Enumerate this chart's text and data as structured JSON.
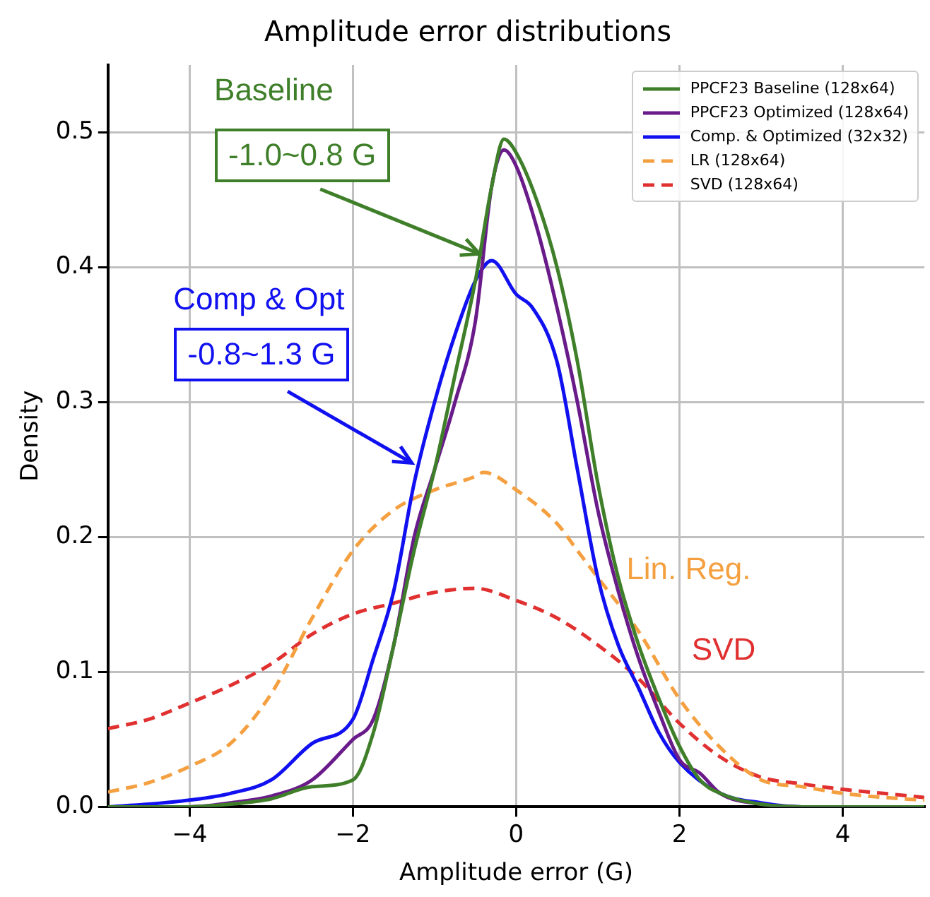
{
  "chart_data": {
    "type": "line",
    "title": "Amplitude error distributions",
    "xlabel": "Amplitude error (G)",
    "ylabel": "Density",
    "xlim": [
      -5,
      5
    ],
    "ylim": [
      0,
      0.55
    ],
    "xticks": [
      {
        "value": -4,
        "label": "−4"
      },
      {
        "value": -2,
        "label": "−2"
      },
      0,
      2,
      4
    ],
    "yticks": [
      {
        "value": 0,
        "label": "0.0"
      },
      {
        "value": 0.1,
        "label": "0.1"
      },
      {
        "value": 0.2,
        "label": "0.2"
      },
      {
        "value": 0.3,
        "label": "0.3"
      },
      {
        "value": 0.4,
        "label": "0.4"
      },
      {
        "value": 0.5,
        "label": "0.5"
      }
    ],
    "grid": true,
    "legend": "top right",
    "marker": "none",
    "annotations": [
      "Baseline",
      {
        "text": "-1.0~0.8 G",
        "x": -0.45,
        "y": 0.41
      },
      "Comp & Opt",
      {
        "text": "-0.8~1.3 G",
        "x": -1.28,
        "y": 0.255
      },
      "Lin. Reg.",
      "SVD"
    ],
    "series": [
      {
        "name": "PPCF23 Baseline (128x64)",
        "color": "#3f7f2a",
        "line_style": "solid",
        "x": [
          -5,
          -4,
          -3.5,
          -3,
          -2.5,
          -2,
          -1.75,
          -1.5,
          -1.25,
          -1,
          -0.75,
          -0.5,
          -0.3,
          -0.15,
          0,
          0.25,
          0.5,
          0.75,
          1,
          1.25,
          1.5,
          1.75,
          2,
          2.25,
          2.5,
          3,
          3.5,
          4,
          5
        ],
        "values": [
          0,
          0,
          0.002,
          0.006,
          0.015,
          0.02,
          0.055,
          0.12,
          0.19,
          0.25,
          0.32,
          0.39,
          0.46,
          0.495,
          0.485,
          0.45,
          0.4,
          0.33,
          0.24,
          0.17,
          0.12,
          0.08,
          0.045,
          0.02,
          0.01,
          0.002,
          0,
          0,
          0
        ]
      },
      {
        "name": "PPCF23 Optimized (128x64)",
        "color": "#6a1b8a",
        "line_style": "solid",
        "x": [
          -5,
          -4,
          -3.5,
          -3,
          -2.5,
          -2,
          -1.75,
          -1.5,
          -1.25,
          -1,
          -0.75,
          -0.5,
          -0.3,
          -0.15,
          0,
          0.25,
          0.5,
          0.75,
          1,
          1.25,
          1.5,
          1.75,
          2,
          2.25,
          2.5,
          3,
          3.5,
          4,
          5
        ],
        "values": [
          0,
          0,
          0.003,
          0.008,
          0.02,
          0.05,
          0.065,
          0.12,
          0.2,
          0.25,
          0.3,
          0.36,
          0.46,
          0.487,
          0.475,
          0.43,
          0.37,
          0.3,
          0.22,
          0.16,
          0.11,
          0.07,
          0.035,
          0.025,
          0.01,
          0.002,
          0,
          0,
          0
        ]
      },
      {
        "name": "Comp. & Optimized (32x32)",
        "color": "#1010f0",
        "line_style": "solid",
        "x": [
          -5,
          -4.5,
          -4,
          -3.5,
          -3,
          -2.5,
          -2,
          -1.75,
          -1.5,
          -1.25,
          -1,
          -0.75,
          -0.5,
          -0.3,
          0,
          0.2,
          0.5,
          0.75,
          1,
          1.25,
          1.5,
          1.75,
          2,
          2.5,
          3,
          3.5,
          4,
          5
        ],
        "values": [
          0,
          0.002,
          0.005,
          0.01,
          0.02,
          0.047,
          0.065,
          0.11,
          0.16,
          0.24,
          0.3,
          0.35,
          0.39,
          0.405,
          0.38,
          0.37,
          0.33,
          0.25,
          0.17,
          0.12,
          0.088,
          0.055,
          0.033,
          0.01,
          0.003,
          0,
          0,
          0
        ]
      },
      {
        "name": "LR (128x64)",
        "color": "#f5a040",
        "line_style": "dashed",
        "x": [
          -5,
          -4.5,
          -4,
          -3.5,
          -3,
          -2.5,
          -2,
          -1.5,
          -1,
          -0.5,
          -0.4,
          0,
          0.5,
          0.75,
          1,
          1.5,
          2,
          2.5,
          3,
          3.5,
          4,
          4.5,
          5
        ],
        "values": [
          0.011,
          0.018,
          0.03,
          0.047,
          0.084,
          0.14,
          0.19,
          0.22,
          0.235,
          0.245,
          0.248,
          0.235,
          0.21,
          0.19,
          0.17,
          0.13,
          0.08,
          0.044,
          0.02,
          0.015,
          0.01,
          0.007,
          0.005
        ]
      },
      {
        "name": "SVD (128x64)",
        "color": "#e03030",
        "line_style": "dashed",
        "x": [
          -5,
          -4.5,
          -4,
          -3.5,
          -3,
          -2.5,
          -2,
          -1.5,
          -1,
          -0.5,
          0,
          0.5,
          1,
          1.5,
          2,
          2.5,
          3,
          3.5,
          4,
          4.5,
          5
        ],
        "values": [
          0.058,
          0.065,
          0.077,
          0.09,
          0.106,
          0.128,
          0.143,
          0.151,
          0.159,
          0.162,
          0.153,
          0.14,
          0.12,
          0.095,
          0.062,
          0.037,
          0.022,
          0.017,
          0.013,
          0.01,
          0.007
        ]
      }
    ]
  }
}
